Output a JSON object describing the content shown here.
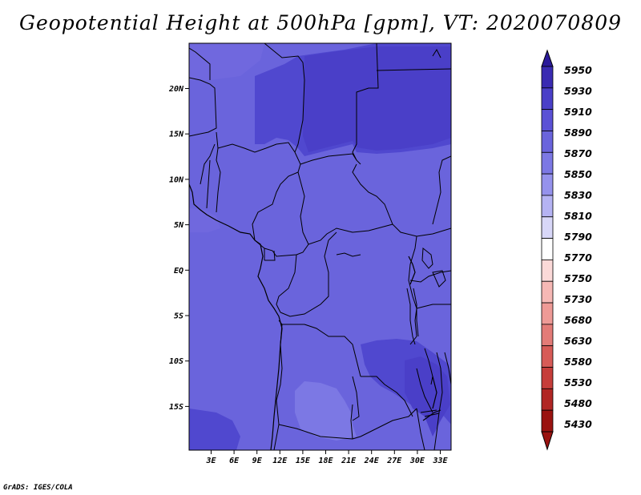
{
  "title": "Geopotential Height at 500hPa [gpm], VT: 2020070809",
  "credit": "GrADS: IGES/COLA",
  "map": {
    "lat_labels": [
      "20N",
      "15N",
      "10N",
      "5N",
      "EQ",
      "5S",
      "10S",
      "15S"
    ],
    "lon_labels": [
      "3E",
      "6E",
      "9E",
      "12E",
      "15E",
      "18E",
      "21E",
      "24E",
      "27E",
      "30E",
      "33E"
    ]
  },
  "colorbar": {
    "levels": [
      "5950",
      "5930",
      "5910",
      "5890",
      "5870",
      "5850",
      "5830",
      "5810",
      "5790",
      "5770",
      "5750",
      "5730",
      "5680",
      "5630",
      "5580",
      "5530",
      "5480",
      "5430"
    ],
    "colors": [
      "#2b1a9a",
      "#3a2bb2",
      "#4a3fc8",
      "#5b51d5",
      "#6a64dc",
      "#7c78e4",
      "#9592ec",
      "#b5b3f3",
      "#d8d7f8",
      "#ffffff",
      "#fbd9d8",
      "#f6b8b5",
      "#ee9a96",
      "#e37b77",
      "#d75b57",
      "#c63d3a",
      "#b12624",
      "#9a1310"
    ]
  },
  "field_colors": {
    "c5870": "#6a64dc",
    "c5890": "#5b51d5",
    "c5910": "#4a3fc8",
    "c5850": "#7c78e4"
  }
}
